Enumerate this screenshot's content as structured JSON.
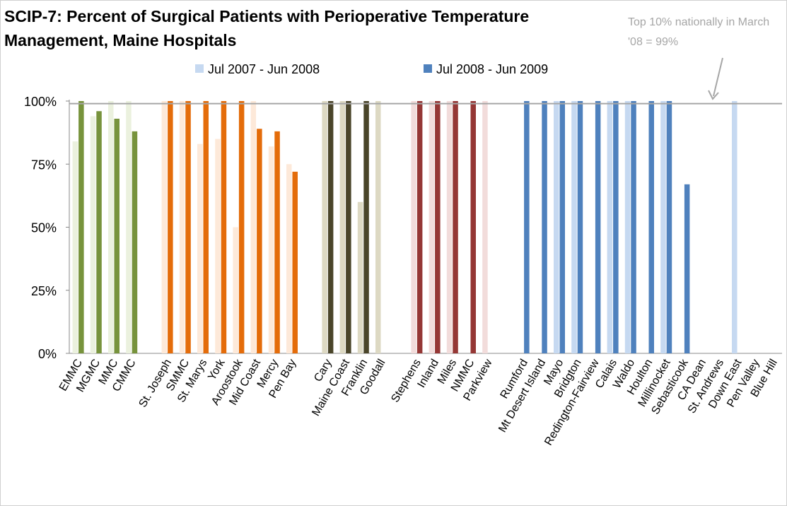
{
  "chart_data": {
    "type": "bar",
    "title": "SCIP-7:  Percent of Surgical Patients with Perioperative Temperature Management, Maine Hospitals",
    "annotation": "Top 10% nationally in March '08 = 99%",
    "reference_line": 99,
    "categories": [
      "EMMC",
      "MGMC",
      "MMC",
      "CMMC",
      "St. Joseph",
      "SMMC",
      "St. Marys",
      "York",
      "Aroostook",
      "Mid Coast",
      "Mercy",
      "Pen Bay",
      "Cary",
      "Maine Coast",
      "Franklin",
      "Goodall",
      "Stephens",
      "Inland",
      "Miles",
      "NMMC",
      "Parkview",
      "Rumford",
      "Mt Desert Island",
      "Mayo",
      "Bridgton",
      "Redington-Fairview",
      "Calais",
      "Waldo",
      "Houlton",
      "Millinocket",
      "Sebasticook",
      "CA Dean",
      "St. Andrews",
      "Down East",
      "Pen Valley",
      "Blue Hill"
    ],
    "series": [
      {
        "name": "Jul 2007 - Jun 2008",
        "color": "#c6d9f1",
        "values": [
          84,
          94,
          100,
          100,
          100,
          100,
          83,
          85,
          50,
          100,
          82,
          75,
          100,
          100,
          60,
          100,
          100,
          100,
          100,
          null,
          100,
          null,
          null,
          100,
          100,
          null,
          100,
          100,
          null,
          100,
          null,
          null,
          null,
          100,
          null,
          null
        ],
        "colors": [
          "#ebf1de",
          "#ebf1de",
          "#ebf1de",
          "#ebf1de",
          "#fde9d9",
          "#fde9d9",
          "#fde9d9",
          "#fde9d9",
          "#fde9d9",
          "#fde9d9",
          "#fde9d9",
          "#fde9d9",
          "#ddd9c3",
          "#ddd9c3",
          "#ddd9c3",
          "#ddd9c3",
          "#f2dcdb",
          "#f2dcdb",
          "#f2dcdb",
          "#f2dcdb",
          "#f2dcdb",
          "#c6d9f1",
          "#c6d9f1",
          "#c6d9f1",
          "#c6d9f1",
          "#c6d9f1",
          "#c6d9f1",
          "#c6d9f1",
          "#c6d9f1",
          "#c6d9f1",
          "#c6d9f1",
          "#c6d9f1",
          "#c6d9f1",
          "#c6d9f1",
          "#c6d9f1",
          "#c6d9f1"
        ]
      },
      {
        "name": "Jul 2008 - Jun 2009",
        "color": "#4f81bd",
        "values": [
          100,
          96,
          93,
          88,
          100,
          100,
          100,
          100,
          100,
          89,
          88,
          72,
          100,
          100,
          100,
          null,
          100,
          100,
          100,
          100,
          null,
          100,
          100,
          100,
          100,
          100,
          100,
          100,
          100,
          100,
          67,
          null,
          null,
          null,
          null,
          null
        ],
        "colors": [
          "#77933c",
          "#77933c",
          "#77933c",
          "#77933c",
          "#e46c0a",
          "#e46c0a",
          "#e46c0a",
          "#e46c0a",
          "#e46c0a",
          "#e46c0a",
          "#e46c0a",
          "#e46c0a",
          "#4a452a",
          "#4a452a",
          "#4a452a",
          "#4a452a",
          "#953735",
          "#953735",
          "#953735",
          "#953735",
          "#953735",
          "#4f81bd",
          "#4f81bd",
          "#4f81bd",
          "#4f81bd",
          "#4f81bd",
          "#4f81bd",
          "#4f81bd",
          "#4f81bd",
          "#4f81bd",
          "#4f81bd",
          "#4f81bd",
          "#4f81bd",
          "#4f81bd",
          "#4f81bd",
          "#4f81bd"
        ]
      }
    ],
    "ylim": [
      0,
      100
    ],
    "yticks": [
      {
        "value": 0,
        "label": "0%"
      },
      {
        "value": 25,
        "label": "25%"
      },
      {
        "value": 50,
        "label": "50%"
      },
      {
        "value": 75,
        "label": "75%"
      },
      {
        "value": 100,
        "label": "100%"
      }
    ]
  }
}
